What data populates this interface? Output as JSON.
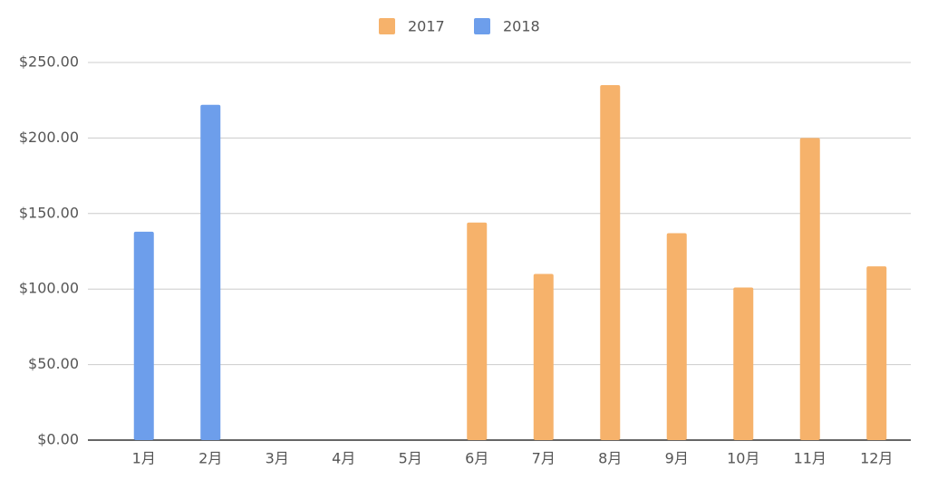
{
  "chart_data": {
    "type": "bar",
    "categories": [
      "1月",
      "2月",
      "3月",
      "4月",
      "5月",
      "6月",
      "7月",
      "8月",
      "9月",
      "10月",
      "11月",
      "12月"
    ],
    "series": [
      {
        "name": "2017",
        "color": "#f6b26b",
        "values": [
          null,
          null,
          null,
          null,
          null,
          144,
          110,
          235,
          137,
          101,
          200,
          115
        ]
      },
      {
        "name": "2018",
        "color": "#6d9eeb",
        "values": [
          138,
          222,
          null,
          null,
          null,
          null,
          null,
          null,
          null,
          null,
          null,
          null
        ]
      }
    ],
    "ylim": [
      0,
      250
    ],
    "yticks": [
      {
        "value": 0,
        "label": "$0.00"
      },
      {
        "value": 50,
        "label": "$50.00"
      },
      {
        "value": 100,
        "label": "$100.00"
      },
      {
        "value": 150,
        "label": "$150.00"
      },
      {
        "value": 200,
        "label": "$200.00"
      },
      {
        "value": 250,
        "label": "$250.00"
      }
    ],
    "grid": true,
    "legend": "top"
  }
}
